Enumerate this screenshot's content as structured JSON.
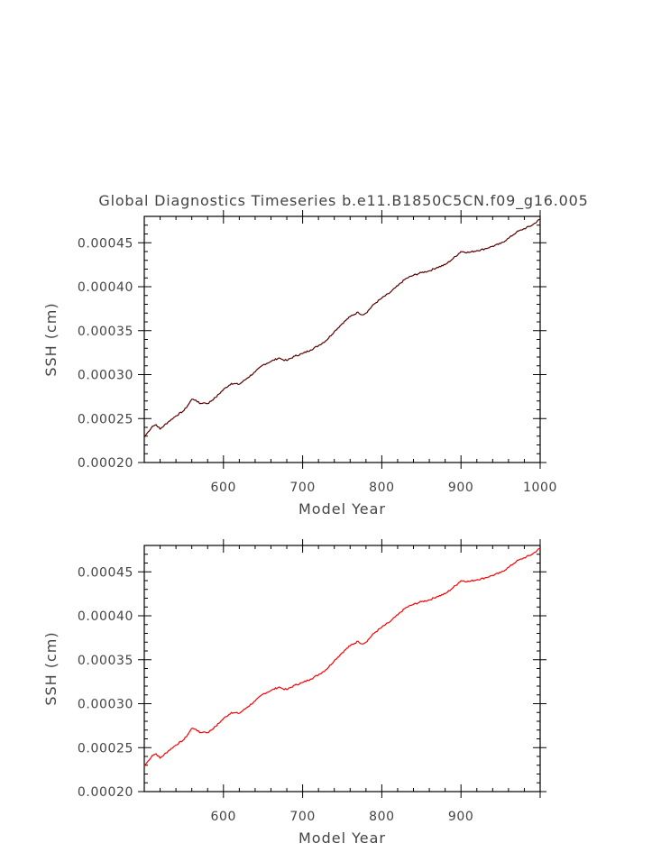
{
  "title": "Global Diagnostics Timeseries b.e11.B1850C5CN.f09_g16.005",
  "colors": {
    "line_dark": "#5a0000",
    "line_red": "#ff0000",
    "axis": "#000000",
    "text": "#444444"
  },
  "chart_data": [
    {
      "type": "line",
      "title": "Global Diagnostics Timeseries b.e11.B1850C5CN.f09_g16.005",
      "xlabel": "Model Year",
      "ylabel": "SSH (cm)",
      "xlim": [
        500,
        1000
      ],
      "ylim": [
        0.0002,
        0.00048
      ],
      "xticks": [
        600,
        700,
        800,
        900,
        1000
      ],
      "xtick_labels": [
        "600",
        "700",
        "800",
        "900",
        "1000"
      ],
      "yticks": [
        0.0002,
        0.00025,
        0.0003,
        0.00035,
        0.0004,
        0.00045
      ],
      "ytick_labels": [
        "0.00020",
        "0.00025",
        "0.00030",
        "0.00035",
        "0.00040",
        "0.00045"
      ],
      "grid": false,
      "series": [
        {
          "color": "#5a0000",
          "x": [
            500,
            505,
            510,
            515,
            520,
            530,
            540,
            550,
            555,
            560,
            565,
            570,
            575,
            580,
            590,
            600,
            610,
            620,
            630,
            640,
            650,
            660,
            670,
            675,
            680,
            690,
            700,
            710,
            720,
            730,
            740,
            750,
            760,
            770,
            775,
            780,
            790,
            800,
            810,
            820,
            830,
            840,
            850,
            860,
            870,
            880,
            890,
            900,
            910,
            920,
            930,
            940,
            950,
            960,
            970,
            980,
            990,
            1000
          ],
          "y": [
            0.000229,
            0.000235,
            0.000241,
            0.000243,
            0.000238,
            0.000246,
            0.000253,
            0.000259,
            0.000265,
            0.000272,
            0.000271,
            0.000267,
            0.000268,
            0.000267,
            0.000274,
            0.000283,
            0.00029,
            0.000289,
            0.000296,
            0.000303,
            0.000311,
            0.000315,
            0.000319,
            0.000317,
            0.000316,
            0.000321,
            0.000324,
            0.000328,
            0.000333,
            0.000339,
            0.000349,
            0.000358,
            0.000366,
            0.000371,
            0.000368,
            0.00037,
            0.00038,
            0.000387,
            0.000393,
            0.000401,
            0.000409,
            0.000413,
            0.000416,
            0.000418,
            0.000422,
            0.000425,
            0.000432,
            0.00044,
            0.000439,
            0.000441,
            0.000443,
            0.000446,
            0.000449,
            0.000455,
            0.000462,
            0.000466,
            0.00047,
            0.000477
          ]
        }
      ]
    },
    {
      "type": "line",
      "xlabel": "Model Year",
      "ylabel": "SSH (cm)",
      "xlim": [
        500,
        1000
      ],
      "ylim": [
        0.0002,
        0.00048
      ],
      "xticks": [
        600,
        700,
        800,
        900
      ],
      "xtick_labels": [
        "600",
        "700",
        "800",
        "900"
      ],
      "yticks": [
        0.0002,
        0.00025,
        0.0003,
        0.00035,
        0.0004,
        0.00045
      ],
      "ytick_labels": [
        "0.00020",
        "0.00025",
        "0.00030",
        "0.00035",
        "0.00040",
        "0.00045"
      ],
      "grid": false,
      "series": [
        {
          "color": "#ff0000",
          "x": [
            500,
            505,
            510,
            515,
            520,
            530,
            540,
            550,
            555,
            560,
            565,
            570,
            575,
            580,
            590,
            600,
            610,
            620,
            630,
            640,
            650,
            660,
            670,
            675,
            680,
            690,
            700,
            710,
            720,
            730,
            740,
            750,
            760,
            770,
            775,
            780,
            790,
            800,
            810,
            820,
            830,
            840,
            850,
            860,
            870,
            880,
            890,
            900,
            910,
            920,
            930,
            940,
            950,
            960,
            970,
            980,
            990,
            1000
          ],
          "y": [
            0.000229,
            0.000235,
            0.000241,
            0.000243,
            0.000238,
            0.000246,
            0.000253,
            0.000259,
            0.000265,
            0.000272,
            0.000271,
            0.000267,
            0.000268,
            0.000267,
            0.000274,
            0.000283,
            0.00029,
            0.000289,
            0.000296,
            0.000303,
            0.000311,
            0.000315,
            0.000319,
            0.000317,
            0.000316,
            0.000321,
            0.000324,
            0.000328,
            0.000333,
            0.000339,
            0.000349,
            0.000358,
            0.000366,
            0.000371,
            0.000368,
            0.00037,
            0.00038,
            0.000387,
            0.000393,
            0.000401,
            0.000409,
            0.000413,
            0.000416,
            0.000418,
            0.000422,
            0.000425,
            0.000432,
            0.00044,
            0.000439,
            0.000441,
            0.000443,
            0.000446,
            0.000449,
            0.000455,
            0.000462,
            0.000466,
            0.00047,
            0.000477
          ]
        }
      ]
    }
  ]
}
